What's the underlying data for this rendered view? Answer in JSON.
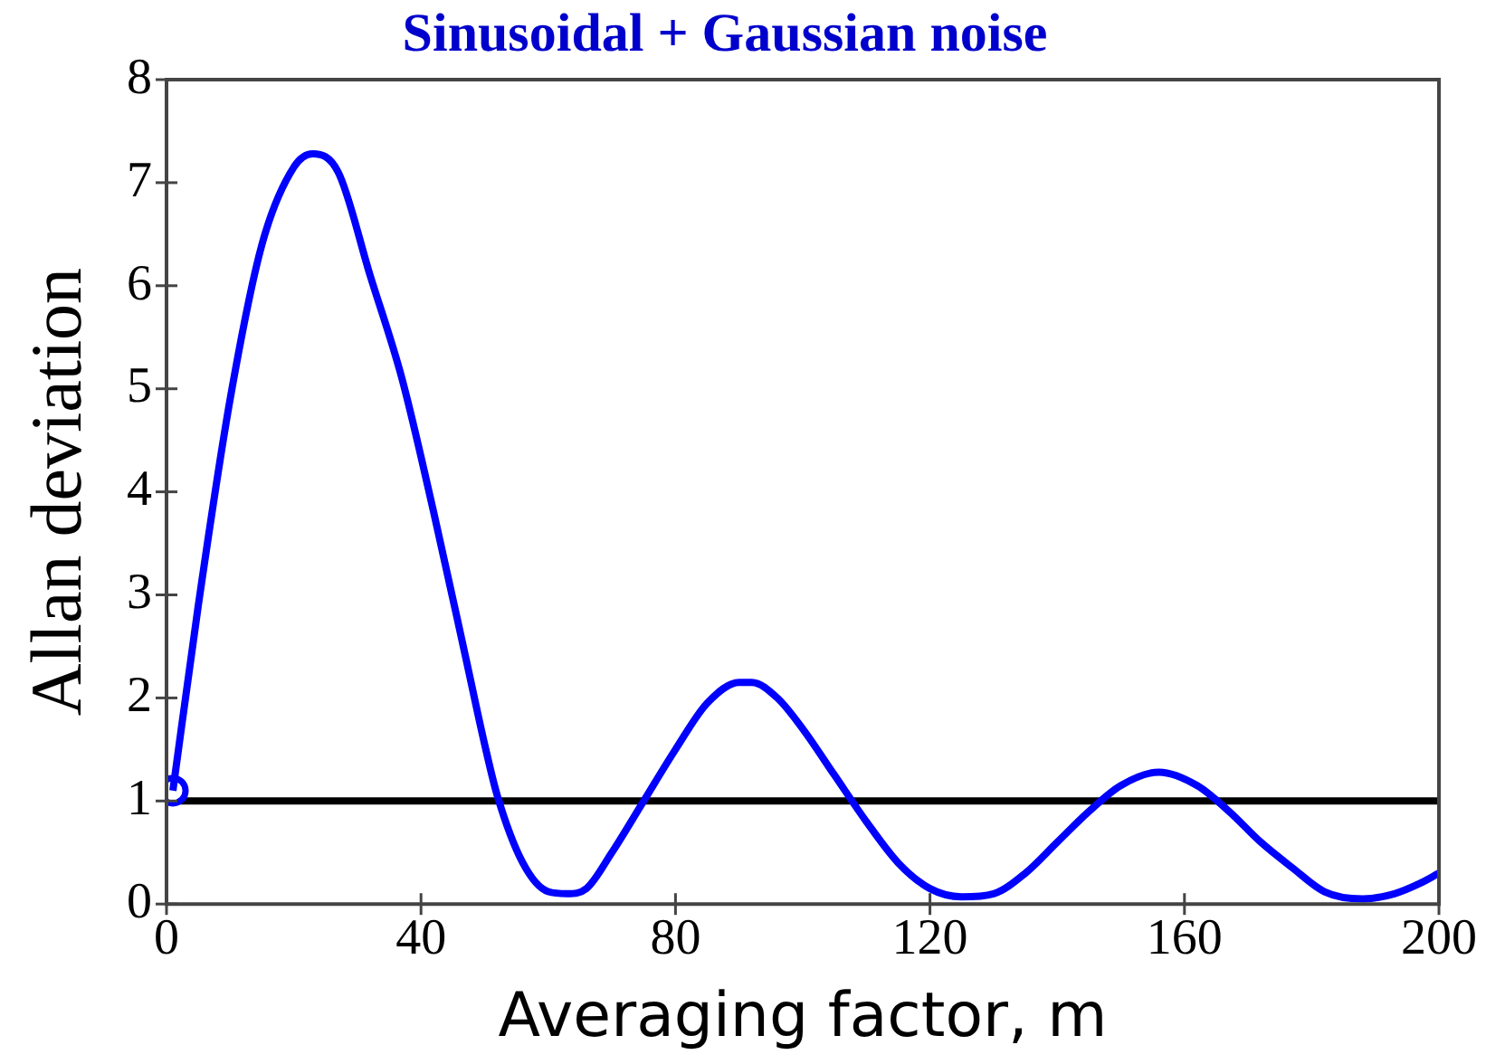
{
  "chart_data": {
    "type": "line",
    "title": "Sinusoidal + Gaussian noise",
    "xlabel": "Averaging factor, m",
    "ylabel": "Allan deviation",
    "xlim": [
      0,
      200
    ],
    "xticks": [
      0,
      40,
      80,
      120,
      160,
      200
    ],
    "ylim": [
      0,
      8
    ],
    "yticks": [
      0,
      1,
      2,
      3,
      4,
      5,
      6,
      7,
      8
    ],
    "grid": false,
    "legend": false,
    "marker": "none",
    "line_style": "solid",
    "ref_lines": [
      {
        "axis": "y",
        "value": 1,
        "color": "#000000"
      }
    ],
    "series": [
      {
        "color": "#0000ff",
        "x": [
          1,
          5,
          10,
          15,
          20,
          23,
          27,
          32,
          37,
          42,
          47,
          50,
          52,
          56,
          60,
          63,
          66,
          70,
          75,
          80,
          85,
          90,
          92,
          96,
          100,
          105,
          110,
          115,
          120,
          125,
          130,
          135,
          140,
          145,
          150,
          156,
          162,
          167,
          172,
          177,
          182,
          188,
          193,
          197,
          200
        ],
        "values": [
          1.1,
          2.9,
          4.9,
          6.4,
          7.15,
          7.28,
          7.1,
          6.1,
          5.1,
          3.8,
          2.4,
          1.55,
          1.05,
          0.4,
          0.12,
          0.1,
          0.15,
          0.5,
          1.0,
          1.5,
          1.95,
          2.15,
          2.15,
          2.0,
          1.7,
          1.25,
          0.8,
          0.4,
          0.15,
          0.07,
          0.1,
          0.3,
          0.6,
          0.9,
          1.15,
          1.28,
          1.15,
          0.9,
          0.6,
          0.35,
          0.12,
          0.05,
          0.1,
          0.2,
          0.3
        ]
      },
      {
        "type": "scatter",
        "color": "#0000ff",
        "marker": "circle",
        "x": [
          1
        ],
        "values": [
          1.1
        ]
      }
    ]
  }
}
